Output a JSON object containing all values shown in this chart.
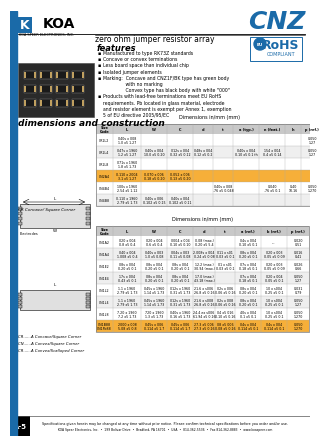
{
  "title": "CNZ",
  "subtitle": "zero ohm jumper resistor array",
  "company": "KOA SPEER ELECTRONICS, INC.",
  "section_title": "dimensions and construction",
  "features_title": "features",
  "features": [
    "Manufactured to type RK73Z standards",
    "Concave or convex terminations",
    "Less board space than individual chip",
    "Isolated jumper elements",
    "Marking:  Concave and CNZ1F/BK type has green body",
    "              with no marking",
    "              Convex type has black body with white \"000\"",
    "Products with lead-free terminations meet EU RoHS",
    "requirements. Pb located in glass material, electrode",
    "and resistor element is exempt per Annex 1, exemption",
    "5 of EU directive 2005/95/EC"
  ],
  "t1_cols": [
    "Size\nCode",
    "L",
    "W",
    "C",
    "d",
    "t",
    "a (typ.)",
    "n (feat.)",
    "ln",
    "p (ref.)"
  ],
  "t1_col_widths": [
    17,
    28,
    26,
    26,
    20,
    20,
    26,
    26,
    16,
    22
  ],
  "t1_rows": [
    [
      "CR1L2",
      "040s x 008\n1.0 x5 1.27",
      "",
      "",
      "",
      "",
      "",
      "",
      "",
      "0.050\n1.27"
    ],
    [
      "CR1L4",
      "047s x 1960\n1.2 x5 1.27",
      "040s x 004\n10.0 x5 0.20",
      "012s x 004\n0.32 x5 0.12",
      "048s x 004\n0.12 x5 0.2",
      "",
      "040s x 004\n0.10 x5 0.1 th",
      "154 x 004\n0.4 x5 0.14",
      "",
      "0.050\n1.27"
    ],
    [
      "CR1L8",
      "071s x 1960\n1.8 x5 1.73",
      "",
      "",
      "",
      "",
      "",
      "",
      "",
      ""
    ],
    [
      "CN2A4",
      "0.110 x 2004\n3.1 x5 1.27",
      "0.070 x 006\n0.18 x5 0.20",
      "0.052 x 006\n0.13 x5 0.20",
      "",
      "",
      "",
      "",
      "",
      ""
    ],
    [
      "CN4B4",
      "100s x 1960\n2.54 x5 1.12",
      "",
      "",
      "",
      "040s x 008\n.76 x5 0.048",
      "",
      "0.040\n.76 x5 0.1",
      "0.40\n10.16",
      "0.050\n1.270"
    ],
    [
      "CN4B8",
      "0.110 x 1960\n2.79 x5 1.73",
      "040s x 006\n0.102 x5 0.15",
      "040s x 004\n0.102 x5 0.11",
      "",
      "",
      "",
      "",
      "",
      ""
    ]
  ],
  "t1_highlight_rows": [
    3
  ],
  "t2_cols": [
    "Size\nCode",
    "L",
    "W",
    "C",
    "d",
    "t",
    "a (ref.)",
    "b (ref.)",
    "p (ref.)"
  ],
  "t2_col_widths": [
    17,
    28,
    26,
    26,
    22,
    20,
    26,
    26,
    22
  ],
  "t2_rows": [
    [
      "CN1A2",
      "020 x 004\n0.8 x5 0.4",
      "020 x 004\n0.6 x5 0.4",
      "0004 x 004\n0.10 x5 0.10",
      "0.08 (max.)\n0.20 x5 5.4",
      "",
      "04s x 004\n0.10 x5 0.1",
      "---",
      "0.020\n0.51"
    ],
    [
      "CN1A4",
      "040 x 004\n1.008 x5 0.4",
      "040s x 003\n1.0 x5 0.08",
      "004s x 003\n0.11 x5 0.08",
      "2.008s x 004\n0.24 x5 0.08",
      "011 x s01\n0.03 x5 0.1",
      "08s x 004\n0.20 x5 0.1",
      "020 x 003\n0.05 x5 0.09",
      "0.016\n0.41"
    ],
    [
      "CN1E2",
      "08s x 004\n0.20 x5 0.1",
      "08s x 004\n0.20 x5 0.1",
      "08s x 004\n0.20 x5 0.1",
      "12.2 (max.)\n30.94 (max.)",
      "01 x s01\n0.03 x5 0.1",
      "07s x 004\n0.18 x5 0.1",
      "020 x 003\n0.05 x5 0.09",
      "0.026\n0.66"
    ],
    [
      "CN1E4",
      "17s x 004\n0.43 x5 0.1",
      "08s x 004\n0.20 x5 0.1",
      "08s x 004\n0.20 x5 0.1",
      "17.0 (max.)\n43.18 (max.)",
      "",
      "07s x 004\n0.18 x5 0.1",
      "020 x 004\n0.05 x5 0.1",
      "0.050\n1.27"
    ],
    [
      "CN1L2",
      "1.1 x 1960\n2.79 x5 1.73",
      "045s x 1960\n1.14 x5 1.73",
      "012s x 1960\n0.31 x5 1.73",
      "21.6 x s006\n26.8 x5 0.16",
      "02s x 006\n0.06 x5 0.16",
      "08s x 004\n0.20 x5 0.1",
      "10 x s004\n0.25 x5 0.1",
      "0.031\n0.79"
    ],
    [
      "CN1L4",
      "1.1 x 1960\n2.79 x5 1.73",
      "045s x 1960\n1.14 x5 1.73",
      "012s x 1960\n0.31 x5 1.73",
      "21.6 x s008\n26.8 x5 0.16",
      "02s x 008\n0.06 x5 0.16",
      "08s x 004\n0.20 x5 0.1",
      "10 x s004\n0.25 x5 0.1",
      "0.050\n1.27"
    ],
    [
      "CN1L8",
      "7.20 x 1960\n7.2 x5 1.73",
      "720 x 1960\n1.3 x5 1.73",
      "040s x 1960\n0.16 x5 1.73",
      "24.4 ex s006\n61.94 x5 0.16",
      "04 x5 016\n0.10 x5 0.16",
      "40s x 004\n0.1 x5 0.1",
      "10 x s004\n0.25 x5 0.1",
      "0.050\n1.270"
    ],
    [
      "CN1B88\nCN1Fb88",
      "2000 x 008\n5.08 x5 0.8",
      "045s x 006\n0.114 x5 1.7",
      "045s x 006\n0.114 x5 1.7",
      "27.3 x5 006\n27.3 x5 0.16",
      "08 x5 006\n0.08 x5 0.16",
      "04s x 004\n0.114 x5 0.1",
      "04s x 004\n0.114 x5 0.1",
      "0.050\n1.270"
    ]
  ],
  "t2_highlight_rows": [
    7
  ],
  "note1": "CR......A Concave/Square Corner",
  "note2": "CN......A Convex/Square Corner",
  "note3": "CR......A Convex/Scalloped Corner",
  "diag1_label": "CR Concave/ Square Corner",
  "footer_note": "Specifications given herein may be changed at any time without prior notice. Please confirm technical specifications before you order and/or use.",
  "footer_contact": "KOA Speer Electronics, Inc.  •  199 Bolivar Drive  •  Bradford, PA 16701  •  USA  •  814-362-5536  •  Fax 814-362-8883  •  www.koaspeer.com",
  "page_num": "A-5",
  "bg_color": "#ffffff",
  "cnz_blue": "#1a6aa8",
  "sidebar_blue": "#1a6aa8",
  "koa_blue": "#1a6aa8",
  "table_highlight_orange": "#f5a623",
  "header_gray": "#c8c8c8",
  "alt_row_gray": "#efefef"
}
